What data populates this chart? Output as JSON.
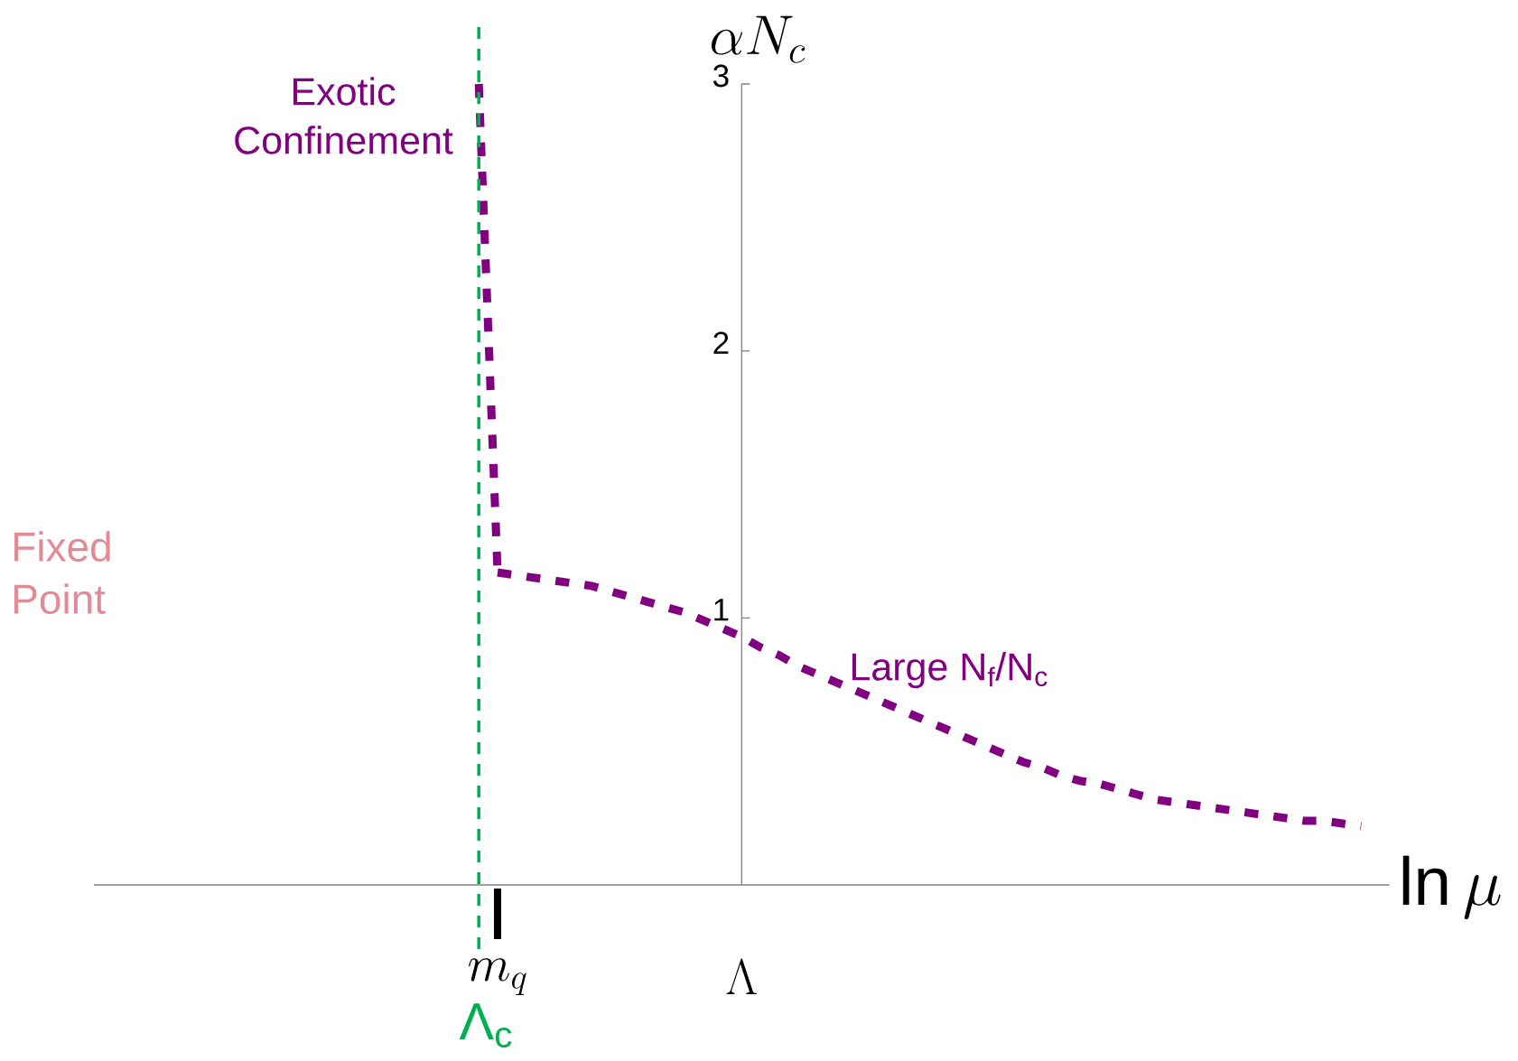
{
  "chart_data": {
    "type": "line",
    "xlabel": "\\ln \\mu",
    "ylabel": "\\alpha N_c",
    "categories": [
      null,
      null,
      null,
      null,
      null,
      null,
      null,
      null,
      null,
      null,
      null,
      null,
      null,
      null,
      null,
      null,
      null,
      null,
      null,
      null,
      null,
      "m_q",
      null,
      null,
      null,
      null,
      null,
      null,
      null,
      null,
      null,
      null,
      null,
      null,
      "\\Lambda",
      null,
      null,
      null,
      null,
      null,
      null,
      null,
      null,
      null,
      null,
      null,
      null,
      null,
      null,
      null,
      null,
      null,
      null,
      null,
      null,
      null,
      null,
      null,
      null,
      null,
      null,
      null,
      null,
      null,
      null,
      null,
      null,
      null,
      null
    ],
    "ylim": [
      0,
      3
    ],
    "yticks": [
      {
        "value": 1,
        "label": "1"
      },
      {
        "value": 2,
        "label": "2"
      },
      {
        "value": 3,
        "label": "3"
      }
    ],
    "line_style": "dashed",
    "marker": "none",
    "series": [
      {
        "name": "Exotic Confinement",
        "color": "#800080",
        "values": [
          null,
          null,
          null,
          null,
          null,
          null,
          null,
          null,
          null,
          null,
          null,
          null,
          null,
          null,
          null,
          null,
          null,
          null,
          null,
          null,
          3.0,
          1.17,
          null,
          null,
          null,
          null,
          null,
          null,
          null,
          null,
          null,
          null,
          null,
          null,
          null,
          null,
          null,
          null,
          null,
          null,
          null,
          null,
          null,
          null,
          null,
          null,
          null,
          null,
          null,
          null,
          null,
          null,
          null,
          null,
          null,
          null,
          null,
          null,
          null,
          null,
          null,
          null,
          null,
          null,
          null,
          null,
          null,
          null,
          null
        ]
      },
      {
        "name": "Large N$_{f}$/N$_{c}$",
        "color": "#800080",
        "values": [
          null,
          null,
          null,
          null,
          null,
          null,
          null,
          null,
          null,
          null,
          null,
          null,
          null,
          null,
          null,
          null,
          null,
          null,
          null,
          null,
          null,
          1.17,
          1.16,
          1.15,
          1.14,
          1.13,
          1.12,
          1.1,
          1.08,
          1.06,
          1.04,
          1.02,
          0.99,
          0.96,
          0.93,
          0.89,
          0.86,
          0.82,
          0.79,
          0.76,
          0.73,
          0.7,
          0.67,
          0.64,
          0.61,
          0.58,
          0.55,
          0.52,
          0.49,
          0.46,
          0.44,
          0.41,
          0.39,
          0.38,
          0.36,
          0.34,
          0.32,
          0.31,
          0.3,
          0.29,
          0.28,
          0.27,
          0.26,
          0.25,
          0.24,
          0.24,
          0.23,
          0.22,
          null
        ]
      }
    ],
    "annotations": [
      "Fixed Point",
      "Λ$_{c}$"
    ]
  }
}
